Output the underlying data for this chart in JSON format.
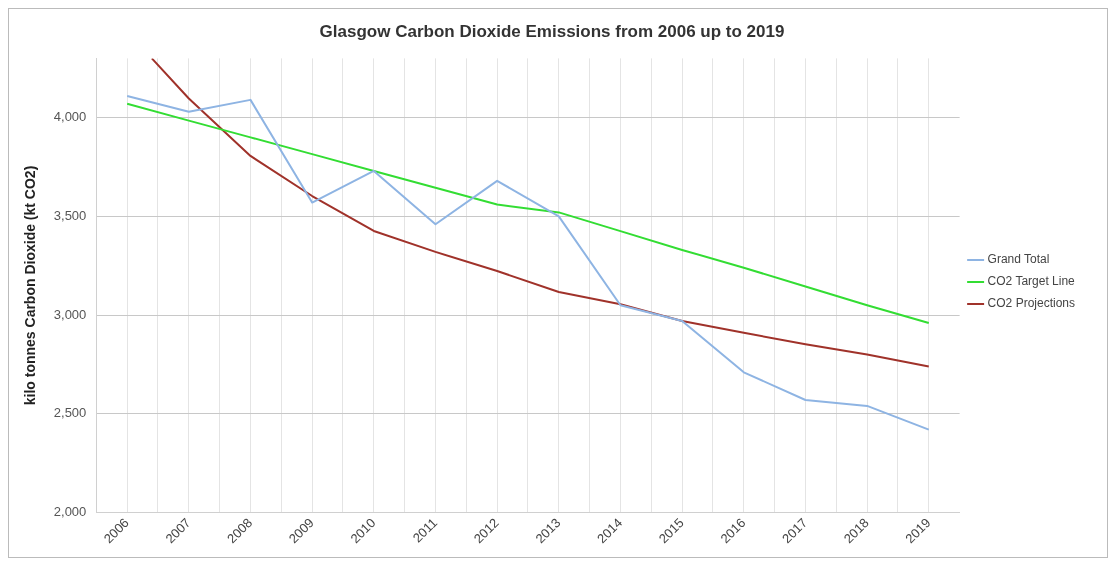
{
  "chart_data": {
    "type": "line",
    "title": "Glasgow Carbon Dioxide Emissions from 2006 up to 2019",
    "ylabel": "kilo tonnes Carbon Dioxide (kt CO2)",
    "x": [
      2006,
      2007,
      2008,
      2009,
      2010,
      2011,
      2012,
      2013,
      2014,
      2015,
      2016,
      2017,
      2018,
      2019
    ],
    "series": [
      {
        "name": "Grand Total",
        "color": "#8eb4e3",
        "values": [
          4110,
          4030,
          4090,
          3570,
          3730,
          3460,
          3680,
          3500,
          3050,
          2970,
          2710,
          2570,
          2540,
          2420
        ]
      },
      {
        "name": "CO2 Target Line",
        "color": "#33dd33",
        "values": [
          4070,
          3985,
          3900,
          3815,
          3730,
          3645,
          3560,
          3520,
          3425,
          3330,
          3240,
          3145,
          3050,
          2960
        ]
      },
      {
        "name": "CO2 Projections",
        "color": "#a0322a",
        "x": [
          2006.4,
          2007,
          2008,
          2009,
          2010,
          2011,
          2012,
          2013,
          2014,
          2015,
          2016,
          2017,
          2018,
          2019
        ],
        "values": [
          4300,
          4097,
          3806,
          3603,
          3426,
          3320,
          3223,
          3117,
          3055,
          2970,
          2910,
          2852,
          2800,
          2740
        ]
      }
    ],
    "xlim": [
      2005.5,
      2019.5
    ],
    "xticks": [
      2006,
      {
        "value": 2006.5,
        "label": null
      },
      2007,
      {
        "value": 2007.5,
        "label": null
      },
      2008,
      {
        "value": 2008.5,
        "label": null
      },
      2009,
      {
        "value": 2009.5,
        "label": null
      },
      2010,
      {
        "value": 2010.5,
        "label": null
      },
      2011,
      {
        "value": 2011.5,
        "label": null
      },
      2012,
      {
        "value": 2012.5,
        "label": null
      },
      2013,
      {
        "value": 2013.5,
        "label": null
      },
      2014,
      {
        "value": 2014.5,
        "label": null
      },
      2015,
      {
        "value": 2015.5,
        "label": null
      },
      2016,
      {
        "value": 2016.5,
        "label": null
      },
      2017,
      {
        "value": 2017.5,
        "label": null
      },
      2018,
      {
        "value": 2018.5,
        "label": null
      },
      2019
    ],
    "ylim": [
      2000,
      4300
    ],
    "yticks": [
      {
        "value": 2000,
        "label": "2,000"
      },
      {
        "value": 2500,
        "label": "2,500"
      },
      {
        "value": 3000,
        "label": "3,000"
      },
      {
        "value": 3500,
        "label": "3,500"
      },
      {
        "value": 4000,
        "label": "4,000"
      }
    ],
    "grid": true,
    "legend": "right",
    "marker": "none",
    "line_style": "solid"
  }
}
